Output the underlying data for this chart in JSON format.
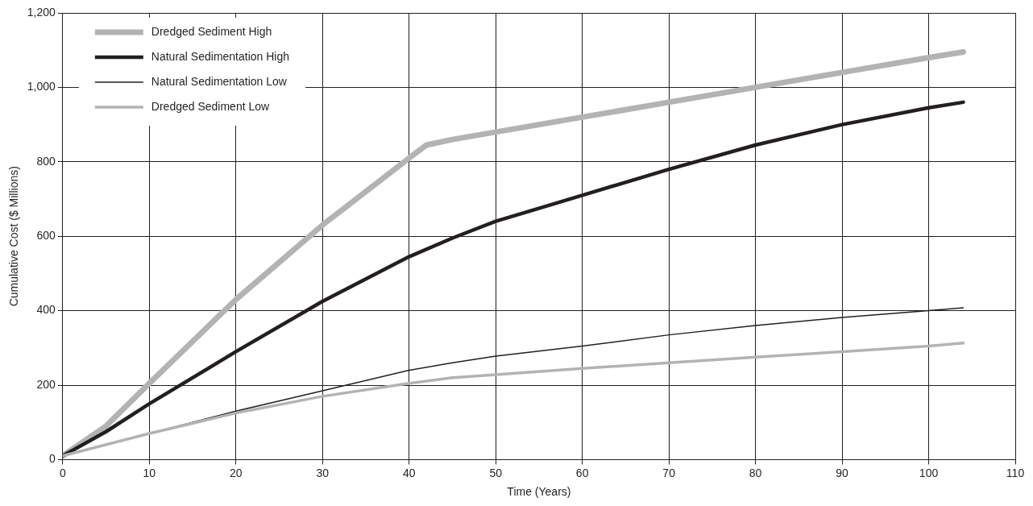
{
  "chart_data": {
    "type": "line",
    "xlabel": "Time (Years)",
    "ylabel": "Cumulative Cost ($ Millions)",
    "xlim": [
      0,
      110
    ],
    "xticks": [
      0,
      10,
      20,
      30,
      40,
      50,
      60,
      70,
      80,
      90,
      100,
      110
    ],
    "ylim": [
      0,
      1200
    ],
    "yticks": [
      0,
      200,
      400,
      600,
      800,
      {
        "value": 1000,
        "label": "1,000"
      },
      {
        "value": 1200,
        "label": "1,200"
      }
    ],
    "grid": true,
    "legend": "top left",
    "marker": "none",
    "line_style": "solid",
    "series": [
      {
        "name": "Dredged Sediment High",
        "color": "#b3b3b3",
        "x": [
          0,
          5,
          10,
          20,
          30,
          40,
          42,
          45,
          50,
          60,
          70,
          80,
          90,
          100,
          104
        ],
        "values": [
          10,
          90,
          205,
          430,
          630,
          810,
          845,
          860,
          880,
          920,
          960,
          1000,
          1040,
          1080,
          1095
        ]
      },
      {
        "name": "Natural Sedimentation High",
        "color": "#231f20",
        "x": [
          0,
          5,
          10,
          20,
          30,
          40,
          45,
          50,
          60,
          70,
          80,
          90,
          100,
          104
        ],
        "values": [
          10,
          75,
          150,
          290,
          425,
          545,
          595,
          640,
          710,
          780,
          845,
          900,
          945,
          960
        ]
      },
      {
        "name": "Natural Sedimentation Low",
        "color": "#231f20",
        "x": [
          0,
          10,
          20,
          30,
          40,
          45,
          50,
          60,
          70,
          80,
          90,
          100,
          104
        ],
        "values": [
          10,
          70,
          130,
          185,
          240,
          260,
          278,
          305,
          335,
          360,
          382,
          400,
          408
        ]
      },
      {
        "name": "Dredged Sediment Low",
        "color": "#b3b3b3",
        "x": [
          0,
          10,
          20,
          30,
          40,
          45,
          50,
          60,
          70,
          80,
          90,
          100,
          104
        ],
        "values": [
          10,
          70,
          125,
          170,
          205,
          220,
          228,
          245,
          260,
          275,
          290,
          305,
          313
        ]
      }
    ]
  }
}
